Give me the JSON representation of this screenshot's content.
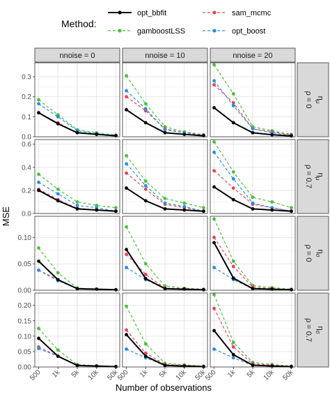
{
  "chart_data": {
    "type": "line",
    "legend": {
      "title": "Method:",
      "position": "top",
      "entries": [
        {
          "name": "opt_bbfit",
          "color": "#000000",
          "dashed": false
        },
        {
          "name": "sam_mcmc",
          "color": "#E0475B",
          "dashed": true
        },
        {
          "name": "gamboostLSS",
          "color": "#4DBE3C",
          "dashed": true
        },
        {
          "name": "opt_boost",
          "color": "#2A8CE0",
          "dashed": true
        }
      ]
    },
    "xlabel": "Number of observations",
    "ylabel": "MSE",
    "x_categories": [
      "500",
      "1k",
      "5k",
      "10k",
      "50k"
    ],
    "column_strips": [
      "nnoise = 0",
      "nnoise = 10",
      "nnoise = 20"
    ],
    "row_strips": [
      {
        "param": "η",
        "sub": "μ",
        "rho": "ρ = 0"
      },
      {
        "param": "η",
        "sub": "μ",
        "rho": "ρ = 0.7"
      },
      {
        "param": "η",
        "sub": "σ",
        "rho": "ρ = 0"
      },
      {
        "param": "η",
        "sub": "σ",
        "rho": "ρ = 0.7"
      }
    ],
    "grid": true,
    "rows": [
      {
        "ylim": [
          0,
          0.37
        ],
        "yticks": [
          0.0,
          0.1,
          0.2,
          0.3
        ],
        "ytick_labels": [
          "0.0",
          "0.1",
          "0.2",
          "0.3"
        ],
        "panels": [
          {
            "series": [
              {
                "name": "opt_bbfit",
                "values": [
                  0.12,
                  0.065,
                  0.02,
                  0.012,
                  0.005
                ]
              },
              {
                "name": "sam_mcmc",
                "values": [
                  0.12,
                  0.07,
                  0.02,
                  0.012,
                  0.005
                ]
              },
              {
                "name": "gamboostLSS",
                "values": [
                  0.185,
                  0.11,
                  0.035,
                  0.02,
                  0.008
                ]
              },
              {
                "name": "opt_boost",
                "values": [
                  0.165,
                  0.1,
                  0.03,
                  0.015,
                  0.006
                ]
              }
            ]
          },
          {
            "series": [
              {
                "name": "opt_bbfit",
                "values": [
                  0.135,
                  0.07,
                  0.02,
                  0.012,
                  0.005
                ]
              },
              {
                "name": "sam_mcmc",
                "values": [
                  0.2,
                  0.13,
                  0.04,
                  0.02,
                  0.01
                ]
              },
              {
                "name": "gamboostLSS",
                "values": [
                  0.305,
                  0.165,
                  0.05,
                  0.025,
                  0.01
                ]
              },
              {
                "name": "opt_boost",
                "values": [
                  0.23,
                  0.14,
                  0.035,
                  0.02,
                  0.007
                ]
              }
            ]
          },
          {
            "series": [
              {
                "name": "opt_bbfit",
                "values": [
                  0.145,
                  0.07,
                  0.02,
                  0.01,
                  0.004
                ]
              },
              {
                "name": "sam_mcmc",
                "values": [
                  0.26,
                  0.17,
                  0.04,
                  0.025,
                  0.01
                ]
              },
              {
                "name": "gamboostLSS",
                "values": [
                  0.36,
                  0.215,
                  0.05,
                  0.03,
                  0.012
                ]
              },
              {
                "name": "opt_boost",
                "values": [
                  0.28,
                  0.155,
                  0.04,
                  0.02,
                  0.006
                ]
              }
            ]
          }
        ]
      },
      {
        "ylim": [
          0,
          0.64
        ],
        "yticks": [
          0.0,
          0.2,
          0.4,
          0.6
        ],
        "ytick_labels": [
          "0.0",
          "0.2",
          "0.4",
          "0.6"
        ],
        "panels": [
          {
            "series": [
              {
                "name": "opt_bbfit",
                "values": [
                  0.2,
                  0.11,
                  0.04,
                  0.03,
                  0.02
                ]
              },
              {
                "name": "sam_mcmc",
                "values": [
                  0.21,
                  0.12,
                  0.045,
                  0.03,
                  0.02
                ]
              },
              {
                "name": "gamboostLSS",
                "values": [
                  0.34,
                  0.21,
                  0.1,
                  0.07,
                  0.05
                ]
              },
              {
                "name": "opt_boost",
                "values": [
                  0.27,
                  0.17,
                  0.07,
                  0.05,
                  0.02
                ]
              }
            ]
          },
          {
            "series": [
              {
                "name": "opt_bbfit",
                "values": [
                  0.22,
                  0.11,
                  0.04,
                  0.03,
                  0.02
                ]
              },
              {
                "name": "sam_mcmc",
                "values": [
                  0.35,
                  0.21,
                  0.08,
                  0.05,
                  0.02
                ]
              },
              {
                "name": "gamboostLSS",
                "values": [
                  0.5,
                  0.28,
                  0.13,
                  0.09,
                  0.05
                ]
              },
              {
                "name": "opt_boost",
                "values": [
                  0.43,
                  0.24,
                  0.09,
                  0.06,
                  0.02
                ]
              }
            ]
          },
          {
            "series": [
              {
                "name": "opt_bbfit",
                "values": [
                  0.23,
                  0.12,
                  0.04,
                  0.03,
                  0.02
                ]
              },
              {
                "name": "sam_mcmc",
                "values": [
                  0.37,
                  0.22,
                  0.08,
                  0.05,
                  0.02
                ]
              },
              {
                "name": "gamboostLSS",
                "values": [
                  0.62,
                  0.36,
                  0.14,
                  0.1,
                  0.05
                ]
              },
              {
                "name": "opt_boost",
                "values": [
                  0.53,
                  0.3,
                  0.09,
                  0.05,
                  0.02
                ]
              }
            ]
          }
        ]
      },
      {
        "ylim": [
          0,
          0.14
        ],
        "yticks": [
          0.0,
          0.05,
          0.1
        ],
        "ytick_labels": [
          "0.00",
          "0.05",
          "0.10"
        ],
        "panels": [
          {
            "series": [
              {
                "name": "opt_bbfit",
                "values": [
                  0.055,
                  0.02,
                  0.003,
                  0.002,
                  0.001
                ]
              },
              {
                "name": "sam_mcmc",
                "values": [
                  0.038,
                  0.02,
                  0.003,
                  0.002,
                  0.001
                ]
              },
              {
                "name": "gamboostLSS",
                "values": [
                  0.08,
                  0.033,
                  0.004,
                  0.002,
                  0.001
                ]
              },
              {
                "name": "opt_boost",
                "values": [
                  0.038,
                  0.018,
                  0.003,
                  0.002,
                  0.001
                ]
              }
            ]
          },
          {
            "series": [
              {
                "name": "opt_bbfit",
                "values": [
                  0.077,
                  0.022,
                  0.003,
                  0.002,
                  0.001
                ]
              },
              {
                "name": "sam_mcmc",
                "values": [
                  0.068,
                  0.03,
                  0.004,
                  0.003,
                  0.001
                ]
              },
              {
                "name": "gamboostLSS",
                "values": [
                  0.12,
                  0.05,
                  0.008,
                  0.004,
                  0.002
                ]
              },
              {
                "name": "opt_boost",
                "values": [
                  0.043,
                  0.02,
                  0.003,
                  0.002,
                  0.001
                ]
              }
            ]
          },
          {
            "series": [
              {
                "name": "opt_bbfit",
                "values": [
                  0.09,
                  0.023,
                  0.003,
                  0.002,
                  0.001
                ]
              },
              {
                "name": "sam_mcmc",
                "values": [
                  0.1,
                  0.045,
                  0.006,
                  0.003,
                  0.001
                ]
              },
              {
                "name": "gamboostLSS",
                "values": [
                  0.135,
                  0.055,
                  0.009,
                  0.005,
                  0.002
                ]
              },
              {
                "name": "opt_boost",
                "values": [
                  0.043,
                  0.02,
                  0.003,
                  0.002,
                  0.001
                ]
              }
            ]
          }
        ]
      },
      {
        "ylim": [
          0,
          0.24
        ],
        "yticks": [
          0.0,
          0.05,
          0.1,
          0.15,
          0.2
        ],
        "ytick_labels": [
          "0.00",
          "0.05",
          "0.10",
          "0.15",
          "0.20"
        ],
        "panels": [
          {
            "series": [
              {
                "name": "opt_bbfit",
                "values": [
                  0.093,
                  0.035,
                  0.005,
                  0.003,
                  0.001
                ]
              },
              {
                "name": "sam_mcmc",
                "values": [
                  0.065,
                  0.035,
                  0.005,
                  0.003,
                  0.001
                ]
              },
              {
                "name": "gamboostLSS",
                "values": [
                  0.125,
                  0.055,
                  0.008,
                  0.004,
                  0.002
                ]
              },
              {
                "name": "opt_boost",
                "values": [
                  0.06,
                  0.035,
                  0.005,
                  0.003,
                  0.001
                ]
              }
            ]
          },
          {
            "series": [
              {
                "name": "opt_bbfit",
                "values": [
                  0.105,
                  0.035,
                  0.005,
                  0.003,
                  0.001
                ]
              },
              {
                "name": "sam_mcmc",
                "values": [
                  0.12,
                  0.045,
                  0.008,
                  0.005,
                  0.002
                ]
              },
              {
                "name": "gamboostLSS",
                "values": [
                  0.197,
                  0.075,
                  0.012,
                  0.007,
                  0.003
                ]
              },
              {
                "name": "opt_boost",
                "values": [
                  0.058,
                  0.03,
                  0.005,
                  0.003,
                  0.001
                ]
              }
            ]
          },
          {
            "series": [
              {
                "name": "opt_bbfit",
                "values": [
                  0.118,
                  0.04,
                  0.006,
                  0.003,
                  0.001
                ]
              },
              {
                "name": "sam_mcmc",
                "values": [
                  0.19,
                  0.065,
                  0.01,
                  0.006,
                  0.002
                ]
              },
              {
                "name": "gamboostLSS",
                "values": [
                  0.235,
                  0.08,
                  0.015,
                  0.008,
                  0.003
                ]
              },
              {
                "name": "opt_boost",
                "values": [
                  0.058,
                  0.03,
                  0.005,
                  0.003,
                  0.001
                ]
              }
            ]
          }
        ]
      }
    ]
  }
}
